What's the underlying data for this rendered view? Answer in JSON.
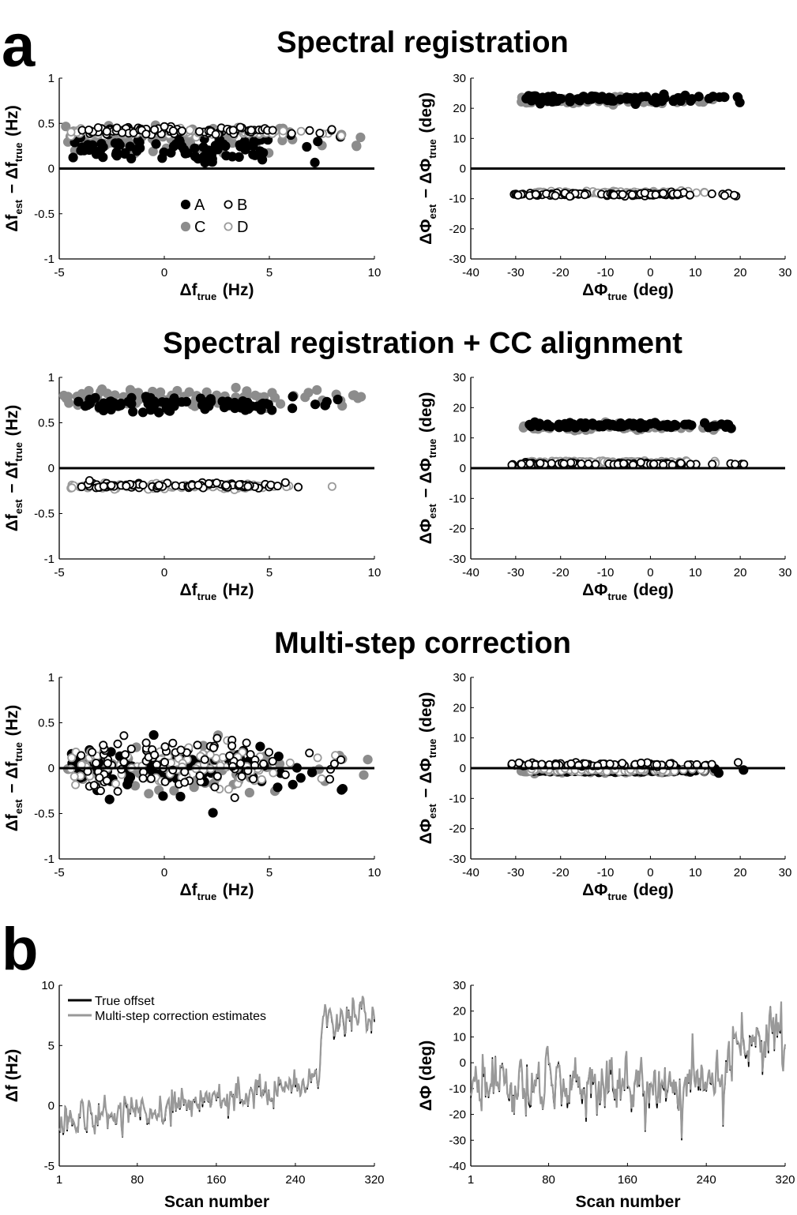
{
  "figure": {
    "panel_labels": {
      "a": "a",
      "b": "b"
    },
    "row_titles": [
      "Spectral registration",
      "Spectral registration + CC alignment",
      "Multi-step correction"
    ]
  },
  "colors": {
    "A": "#000000",
    "B": "#000000",
    "C": "#8c8c8c",
    "D": "#9a9a9a",
    "true_offset": "#000000",
    "estimates": "#999999"
  },
  "labels": {
    "freq_x": {
      "main": "Δf",
      "sub": "true",
      "unit": " (Hz)"
    },
    "freq_y": {
      "p1": "Δf",
      "s1": "est",
      "p2": " − Δf",
      "s2": "true",
      "unit": " (Hz)"
    },
    "phase_x": {
      "main": "ΔΦ",
      "sub": "true",
      "unit": " (deg)"
    },
    "phase_y": {
      "p1": "ΔΦ",
      "s1": "est",
      "p2": " − ΔΦ",
      "s2": "true",
      "unit": " (deg)"
    },
    "scan_x": "Scan number",
    "b_freq_y": "Δf (Hz)",
    "b_phase_y": "ΔΦ (deg)"
  },
  "chart_data": [
    {
      "id": "sr-freq",
      "type": "scatter",
      "title": "Spectral registration",
      "xlim": [
        -5,
        10
      ],
      "ylim": [
        -1,
        1
      ],
      "xticks": [
        -5,
        0,
        5,
        10
      ],
      "yticks": [
        -1,
        -0.5,
        0,
        0.5,
        1
      ],
      "xtick_labels": [
        "-5",
        "0",
        "5",
        "10"
      ],
      "ytick_labels": [
        "-1",
        "-0.5",
        "0",
        "0.5",
        "1"
      ],
      "zero_line": true,
      "legend": {
        "placement": "lower-center",
        "entries": [
          {
            "name": "A",
            "style": "filled-black"
          },
          {
            "name": "B",
            "style": "open-black"
          },
          {
            "name": "C",
            "style": "filled-gray"
          },
          {
            "name": "D",
            "style": "open-gray"
          }
        ]
      },
      "series": [
        {
          "name": "A",
          "x_range": [
            -4.5,
            8.5
          ],
          "y_center": 0.22,
          "y_spread": 0.07,
          "n": 90
        },
        {
          "name": "B",
          "x_range": [
            -4.0,
            8.5
          ],
          "y_center": 0.42,
          "y_spread": 0.02,
          "n": 90
        },
        {
          "name": "C",
          "x_range": [
            -4.8,
            9.7
          ],
          "y_center": 0.33,
          "y_spread": 0.07,
          "n": 90
        },
        {
          "name": "D",
          "x_range": [
            -4.5,
            8.6
          ],
          "y_center": 0.4,
          "y_spread": 0.02,
          "n": 90
        }
      ]
    },
    {
      "id": "sr-phase",
      "type": "scatter",
      "title": "Spectral registration",
      "xlim": [
        -40,
        30
      ],
      "ylim": [
        -30,
        30
      ],
      "xticks": [
        -40,
        -30,
        -20,
        -10,
        0,
        10,
        20,
        30
      ],
      "yticks": [
        -30,
        -20,
        -10,
        0,
        10,
        20,
        30
      ],
      "xtick_labels": [
        "-40",
        "-30",
        "-20",
        "-10",
        "0",
        "10",
        "20",
        "30"
      ],
      "ytick_labels": [
        "-30",
        "-20",
        "-10",
        "0",
        "10",
        "20",
        "30"
      ],
      "zero_line": true,
      "series": [
        {
          "name": "A",
          "x_range": [
            -28,
            22
          ],
          "y_center": 23.2,
          "y_spread": 0.6,
          "n": 90
        },
        {
          "name": "B",
          "x_range": [
            -31,
            21.5
          ],
          "y_center": -8.6,
          "y_spread": 0.3,
          "n": 90
        },
        {
          "name": "C",
          "x_range": [
            -29,
            15
          ],
          "y_center": 22.6,
          "y_spread": 0.6,
          "n": 90
        },
        {
          "name": "D",
          "x_range": [
            -26,
            15
          ],
          "y_center": -8.0,
          "y_spread": 0.3,
          "n": 90
        }
      ]
    },
    {
      "id": "cc-freq",
      "type": "scatter",
      "title": "Spectral registration + CC alignment",
      "xlim": [
        -5,
        10
      ],
      "ylim": [
        -1,
        1
      ],
      "xticks": [
        -5,
        0,
        5,
        10
      ],
      "yticks": [
        -1,
        -0.5,
        0,
        0.5,
        1
      ],
      "xtick_labels": [
        "-5",
        "0",
        "5",
        "10"
      ],
      "ytick_labels": [
        "-1",
        "-0.5",
        "0",
        "0.5",
        "1"
      ],
      "zero_line": true,
      "series": [
        {
          "name": "A",
          "x_range": [
            -4.5,
            8.5
          ],
          "y_center": 0.7,
          "y_spread": 0.05,
          "n": 90
        },
        {
          "name": "B",
          "x_range": [
            -4.0,
            8.5
          ],
          "y_center": -0.19,
          "y_spread": 0.015,
          "n": 90
        },
        {
          "name": "C",
          "x_range": [
            -4.8,
            9.7
          ],
          "y_center": 0.77,
          "y_spread": 0.05,
          "n": 90
        },
        {
          "name": "D",
          "x_range": [
            -4.5,
            8.2
          ],
          "y_center": -0.2,
          "y_spread": 0.015,
          "n": 90
        }
      ]
    },
    {
      "id": "cc-phase",
      "type": "scatter",
      "title": "Spectral registration + CC alignment",
      "xlim": [
        -40,
        30
      ],
      "ylim": [
        -30,
        30
      ],
      "xticks": [
        -40,
        -30,
        -20,
        -10,
        0,
        10,
        20,
        30
      ],
      "yticks": [
        -30,
        -20,
        -10,
        0,
        10,
        20,
        30
      ],
      "xtick_labels": [
        "-40",
        "-30",
        "-20",
        "-10",
        "0",
        "10",
        "20",
        "30"
      ],
      "ytick_labels": [
        "-30",
        "-20",
        "-10",
        "0",
        "10",
        "20",
        "30"
      ],
      "zero_line": true,
      "series": [
        {
          "name": "A",
          "x_range": [
            -27,
            22
          ],
          "y_center": 14.2,
          "y_spread": 0.5,
          "n": 90
        },
        {
          "name": "B",
          "x_range": [
            -31,
            21.5
          ],
          "y_center": 1.4,
          "y_spread": 0.2,
          "n": 90
        },
        {
          "name": "C",
          "x_range": [
            -29,
            15
          ],
          "y_center": 13.7,
          "y_spread": 0.5,
          "n": 90
        },
        {
          "name": "D",
          "x_range": [
            -28,
            15
          ],
          "y_center": 2.0,
          "y_spread": 0.2,
          "n": 90
        }
      ]
    },
    {
      "id": "ms-freq",
      "type": "scatter",
      "title": "Multi-step correction",
      "xlim": [
        -5,
        10
      ],
      "ylim": [
        -1,
        1
      ],
      "xticks": [
        -5,
        0,
        5,
        10
      ],
      "yticks": [
        -1,
        -0.5,
        0,
        0.5,
        1
      ],
      "xtick_labels": [
        "-5",
        "0",
        "5",
        "10"
      ],
      "ytick_labels": [
        "-1",
        "-0.5",
        "0",
        "0.5",
        "1"
      ],
      "zero_line": true,
      "series": [
        {
          "name": "A",
          "x_range": [
            -4.5,
            8.5
          ],
          "y_center": 0.0,
          "y_spread": 0.13,
          "n": 90
        },
        {
          "name": "B",
          "x_range": [
            -4.0,
            8.5
          ],
          "y_center": 0.05,
          "y_spread": 0.15,
          "n": 90
        },
        {
          "name": "C",
          "x_range": [
            -4.8,
            9.7
          ],
          "y_center": 0.0,
          "y_spread": 0.12,
          "n": 90
        },
        {
          "name": "D",
          "x_range": [
            -4.5,
            8.2
          ],
          "y_center": 0.02,
          "y_spread": 0.12,
          "n": 90
        }
      ]
    },
    {
      "id": "ms-phase",
      "type": "scatter",
      "title": "Multi-step correction",
      "xlim": [
        -40,
        30
      ],
      "ylim": [
        -30,
        30
      ],
      "xticks": [
        -40,
        -30,
        -20,
        -10,
        0,
        10,
        20,
        30
      ],
      "yticks": [
        -30,
        -20,
        -10,
        0,
        10,
        20,
        30
      ],
      "xtick_labels": [
        "-40",
        "-30",
        "-20",
        "-10",
        "0",
        "10",
        "20",
        "30"
      ],
      "ytick_labels": [
        "-30",
        "-20",
        "-10",
        "0",
        "10",
        "20",
        "30"
      ],
      "zero_line": true,
      "series": [
        {
          "name": "A",
          "x_range": [
            -27,
            22
          ],
          "y_center": -0.8,
          "y_spread": 0.3,
          "n": 90
        },
        {
          "name": "B",
          "x_range": [
            -31,
            21.5
          ],
          "y_center": 1.2,
          "y_spread": 0.3,
          "n": 90
        },
        {
          "name": "C",
          "x_range": [
            -29,
            15
          ],
          "y_center": -0.9,
          "y_spread": 0.3,
          "n": 90
        },
        {
          "name": "D",
          "x_range": [
            -28,
            15
          ],
          "y_center": -0.6,
          "y_spread": 0.3,
          "n": 90
        }
      ]
    },
    {
      "id": "b-freq",
      "type": "line",
      "xlim": [
        1,
        320
      ],
      "ylim": [
        -5,
        10
      ],
      "xticks": [
        1,
        80,
        160,
        240,
        320
      ],
      "yticks": [
        -5,
        0,
        5,
        10
      ],
      "xtick_labels": [
        "1",
        "80",
        "160",
        "240",
        "320"
      ],
      "ytick_labels": [
        "-5",
        "0",
        "5",
        "10"
      ],
      "legend": {
        "placement": "top-left"
      },
      "series": [
        {
          "name": "True offset",
          "trend": [
            [
              1,
              -1.8
            ],
            [
              80,
              -0.5
            ],
            [
              160,
              0.5
            ],
            [
              240,
              2.0
            ],
            [
              262,
              2.2
            ],
            [
              268,
              7.0
            ],
            [
              320,
              7.2
            ]
          ],
          "amplitude": 1.5
        },
        {
          "name": "Multi-step correction estimates",
          "follows": "True offset"
        }
      ]
    },
    {
      "id": "b-phase",
      "type": "line",
      "xlim": [
        1,
        320
      ],
      "ylim": [
        -40,
        30
      ],
      "xticks": [
        1,
        80,
        160,
        240,
        320
      ],
      "yticks": [
        -40,
        -30,
        -20,
        -10,
        0,
        10,
        20,
        30
      ],
      "xtick_labels": [
        "1",
        "80",
        "160",
        "240",
        "320"
      ],
      "ytick_labels": [
        "-40",
        "-30",
        "-20",
        "-10",
        "0",
        "10",
        "20",
        "30"
      ],
      "series": [
        {
          "name": "True offset",
          "trend": [
            [
              1,
              -10
            ],
            [
              80,
              -8
            ],
            [
              160,
              -10
            ],
            [
              240,
              -8
            ],
            [
              262,
              -5
            ],
            [
              268,
              6
            ],
            [
              320,
              8
            ]
          ],
          "amplitude": 11
        },
        {
          "name": "Multi-step correction estimates",
          "follows": "True offset"
        }
      ]
    }
  ]
}
